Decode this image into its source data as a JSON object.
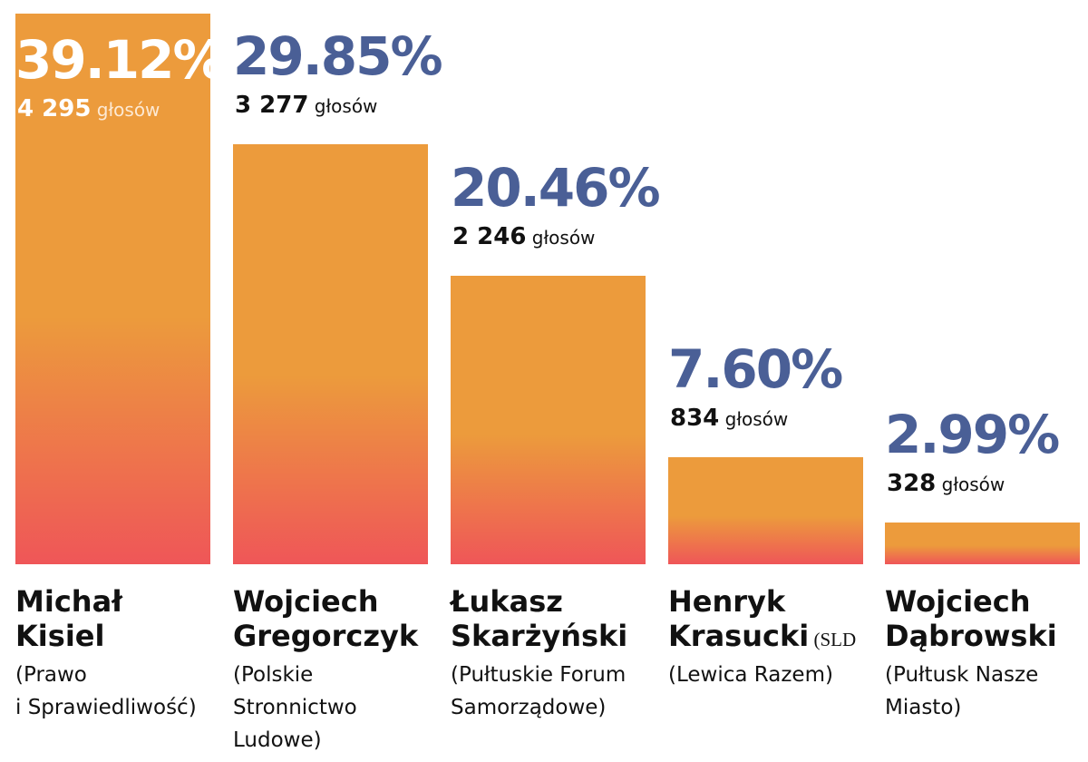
{
  "votes_unit": "głosów",
  "colors": {
    "bar_top": "#ec9b3c",
    "bar_bottom": "#ef5658",
    "percent_label": "#4a5f96",
    "percent_label_inside": "#ffffff",
    "text": "#111111"
  },
  "chart_data": {
    "type": "bar",
    "title": "",
    "xlabel": "",
    "ylabel": "",
    "ylim": [
      0,
      40
    ],
    "grid": false,
    "categories": [
      "Michał Kisiel",
      "Wojciech Gregorczyk",
      "Łukasz Skarżyński",
      "Henryk Krasucki",
      "Wojciech Dąbrowski"
    ],
    "values": [
      39.12,
      29.85,
      20.46,
      7.6,
      2.99
    ],
    "votes": [
      4295,
      3277,
      2246,
      834,
      328
    ],
    "bars": [
      {
        "percent_label": "39.12%",
        "votes_label": "4 295",
        "name_lines": [
          "Michał",
          "Kisiel"
        ],
        "name_suffix": "",
        "party_lines": [
          "(Prawo",
          "i Sprawiedliwość)"
        ]
      },
      {
        "percent_label": "29.85%",
        "votes_label": "3 277",
        "name_lines": [
          "Wojciech",
          "Gregorczyk"
        ],
        "name_suffix": "",
        "party_lines": [
          "(Polskie",
          "Stronnictwo",
          "Ludowe)"
        ]
      },
      {
        "percent_label": "20.46%",
        "votes_label": "2 246",
        "name_lines": [
          "Łukasz",
          "Skarżyński"
        ],
        "name_suffix": "",
        "party_lines": [
          "(Pułtuskie Forum",
          "Samorządowe)"
        ]
      },
      {
        "percent_label": "7.60%",
        "votes_label": "834",
        "name_lines": [
          "Henryk",
          "Krasucki"
        ],
        "name_suffix": "(SLD",
        "party_lines": [
          "(Lewica Razem)"
        ]
      },
      {
        "percent_label": "2.99%",
        "votes_label": "328",
        "name_lines": [
          "Wojciech",
          "Dąbrowski"
        ],
        "name_suffix": "",
        "party_lines": [
          "(Pułtusk Nasze",
          "Miasto)"
        ]
      }
    ]
  }
}
